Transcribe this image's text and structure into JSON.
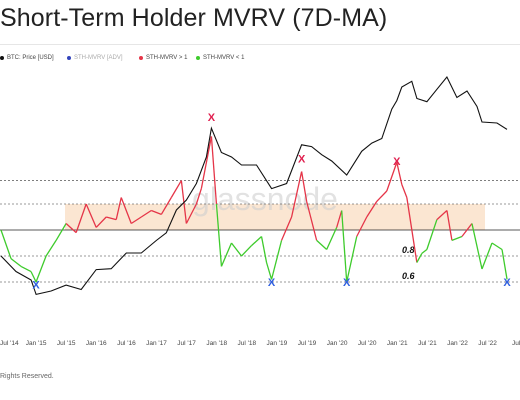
{
  "title": "Short-Term Holder MVRV (7D-MA)",
  "watermark": "glassnode",
  "copyright": "Rights Reserved.",
  "colors": {
    "price": "#111111",
    "sth_mvrv_advi": "#3344bb",
    "above_one": "#e53548",
    "below_one": "#3ecb2c",
    "band": "#f7c79c",
    "marker_top": "#e0204f",
    "marker_bottom": "#2f5fe0"
  },
  "chart_data": {
    "type": "line",
    "title": "Short-Term Holder MVRV (7D-MA)",
    "legend_position": "top-left",
    "legend": [
      {
        "label": "BTC: Price [USD]",
        "color": "#111111"
      },
      {
        "label": "STH-MVRV [ADV]",
        "color": "#3344bb"
      },
      {
        "label": "STH-MVRV > 1",
        "color": "#e53548"
      },
      {
        "label": "STH-MVRV < 1",
        "color": "#3ecb2c"
      }
    ],
    "x_tick_labels": [
      "Jul '14",
      "Jan '15",
      "Jul '15",
      "Jan '16",
      "Jul '16",
      "Jan '17",
      "Jul '17",
      "Jan '18",
      "Jul '18",
      "Jan '19",
      "Jul '19",
      "Jan '20",
      "Jul '20",
      "Jan '21",
      "Jul '21",
      "Jan '22",
      "Jul '22",
      "Jul '"
    ],
    "right_axis_labels": [
      "0.8",
      "0.6"
    ],
    "threshold_lines": [
      1.38,
      1.2,
      1.0,
      0.8,
      0.6
    ],
    "shaded_band": [
      1.0,
      1.2
    ],
    "price": {
      "name": "BTC: Price [USD]",
      "x": [
        "2014-06",
        "2014-09",
        "2014-12",
        "2015-01",
        "2015-04",
        "2015-07",
        "2015-10",
        "2016-01",
        "2016-04",
        "2016-07",
        "2016-10",
        "2017-01",
        "2017-03",
        "2017-05",
        "2017-07",
        "2017-09",
        "2017-11",
        "2017-12",
        "2018-02",
        "2018-04",
        "2018-06",
        "2018-09",
        "2018-12",
        "2019-03",
        "2019-06",
        "2019-08",
        "2019-10",
        "2019-12",
        "2020-03",
        "2020-06",
        "2020-08",
        "2020-10",
        "2020-12",
        "2021-01",
        "2021-02",
        "2021-04",
        "2021-05",
        "2021-07",
        "2021-09",
        "2021-11",
        "2022-01",
        "2022-03",
        "2022-05",
        "2022-06",
        "2022-09",
        "2022-11"
      ],
      "y": [
        600,
        400,
        320,
        220,
        240,
        280,
        250,
        420,
        430,
        650,
        650,
        900,
        1100,
        2000,
        2600,
        4000,
        8000,
        17000,
        9000,
        8000,
        6500,
        6500,
        3500,
        4000,
        11000,
        10500,
        8500,
        7200,
        5000,
        9300,
        11500,
        13000,
        28000,
        35000,
        50000,
        58000,
        37000,
        34000,
        47000,
        65000,
        38000,
        45000,
        30000,
        20000,
        19500,
        16500
      ]
    },
    "sth_mvrv": {
      "name": "STH-MVRV",
      "x": [
        "2014-06",
        "2014-08",
        "2014-10",
        "2014-12",
        "2015-01",
        "2015-03",
        "2015-05",
        "2015-07",
        "2015-09",
        "2015-11",
        "2016-01",
        "2016-03",
        "2016-05",
        "2016-06",
        "2016-08",
        "2016-10",
        "2016-12",
        "2017-02",
        "2017-04",
        "2017-06",
        "2017-07",
        "2017-09",
        "2017-10",
        "2017-12",
        "2018-01",
        "2018-02",
        "2018-04",
        "2018-06",
        "2018-08",
        "2018-10",
        "2018-11",
        "2018-12",
        "2019-02",
        "2019-04",
        "2019-06",
        "2019-07",
        "2019-09",
        "2019-11",
        "2020-01",
        "2020-02",
        "2020-03",
        "2020-05",
        "2020-07",
        "2020-09",
        "2020-11",
        "2021-01",
        "2021-02",
        "2021-03",
        "2021-05",
        "2021-06",
        "2021-07",
        "2021-09",
        "2021-11",
        "2021-12",
        "2022-02",
        "2022-04",
        "2022-06",
        "2022-08",
        "2022-10",
        "2022-11"
      ],
      "y": [
        1.0,
        0.78,
        0.72,
        0.68,
        0.6,
        0.8,
        0.92,
        1.05,
        0.98,
        1.2,
        1.02,
        1.1,
        1.08,
        1.25,
        1.05,
        1.1,
        1.15,
        1.12,
        1.25,
        1.38,
        1.05,
        1.2,
        1.32,
        1.72,
        1.2,
        0.72,
        0.9,
        0.8,
        0.88,
        0.95,
        0.75,
        0.62,
        0.92,
        1.1,
        1.45,
        1.22,
        0.92,
        0.85,
        1.02,
        1.15,
        0.6,
        0.95,
        1.1,
        1.22,
        1.3,
        1.52,
        1.35,
        1.25,
        0.75,
        0.82,
        0.85,
        1.08,
        1.15,
        0.92,
        0.95,
        1.05,
        0.7,
        0.9,
        0.85,
        0.62
      ]
    },
    "markers": [
      {
        "label": "X",
        "kind": "top",
        "x": "2017-12",
        "y": 1.84
      },
      {
        "label": "X",
        "kind": "top",
        "x": "2019-06",
        "y": 1.52
      },
      {
        "label": "X",
        "kind": "top",
        "x": "2021-01",
        "y": 1.5
      },
      {
        "label": "X",
        "kind": "bottom",
        "x": "2015-01",
        "y": 0.55
      },
      {
        "label": "X",
        "kind": "bottom",
        "x": "2018-12",
        "y": 0.57
      },
      {
        "label": "X",
        "kind": "bottom",
        "x": "2020-03",
        "y": 0.57
      },
      {
        "label": "X",
        "kind": "bottom",
        "x": "2022-11",
        "y": 0.57
      }
    ]
  }
}
